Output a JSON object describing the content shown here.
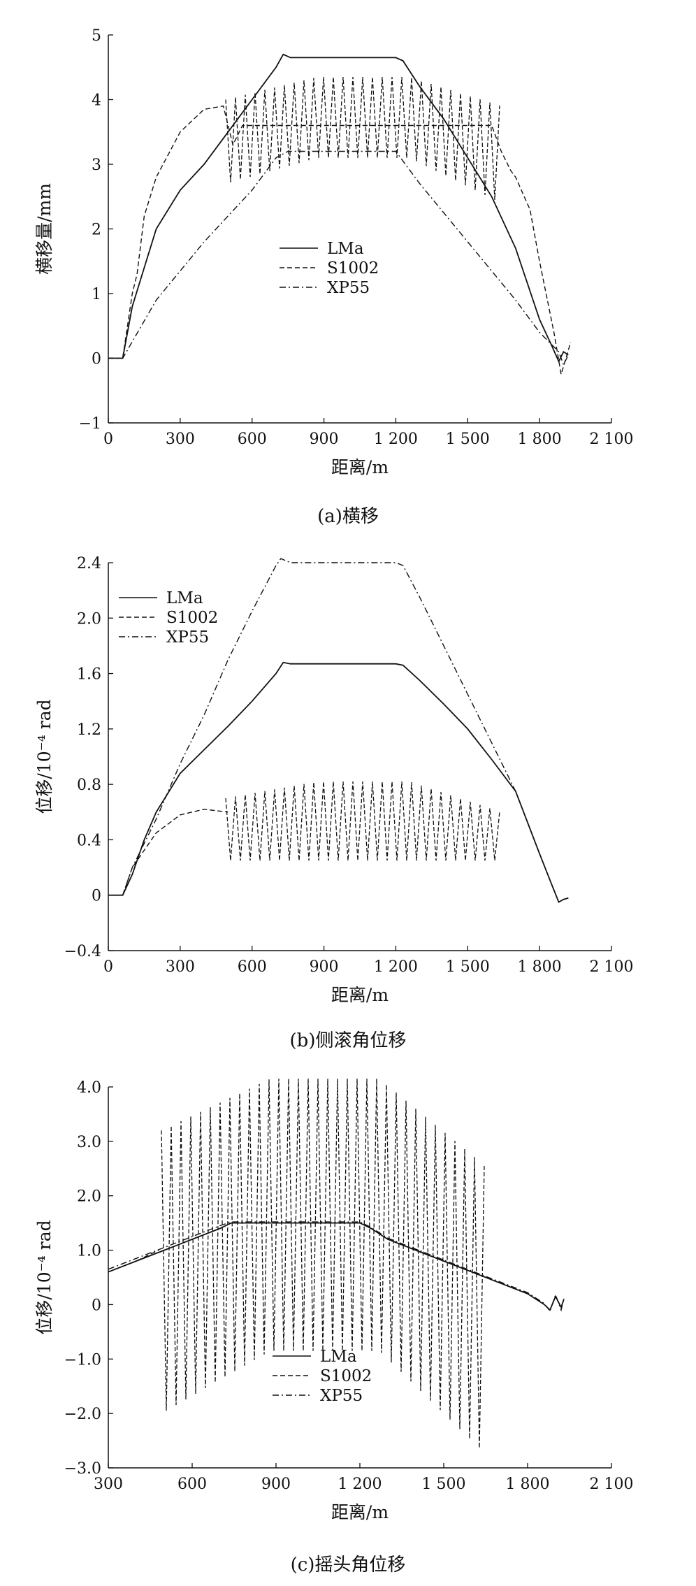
{
  "chart_data": [
    {
      "type": "line",
      "caption": "(a)横移",
      "xlabel": "距离/m",
      "ylabel": "横移量/mm",
      "xlim": [
        0,
        2100
      ],
      "ylim": [
        -1,
        5
      ],
      "xticks": [
        0,
        300,
        600,
        900,
        1200,
        1500,
        1800,
        2100
      ],
      "xtick_labels": [
        "0",
        "300",
        "600",
        "900",
        "1 200",
        "1 500",
        "1 800",
        "2 100"
      ],
      "yticks": [
        -1,
        0,
        1,
        2,
        3,
        4,
        5
      ],
      "ytick_labels": [
        "−1",
        "0",
        "1",
        "2",
        "3",
        "4",
        "5"
      ],
      "legend": [
        "LMa",
        "S1002",
        "XP55"
      ],
      "legend_position": "middle-left",
      "series": [
        {
          "name": "LMa",
          "style": "solid",
          "x": [
            0,
            60,
            100,
            150,
            200,
            300,
            400,
            500,
            600,
            700,
            730,
            760,
            1200,
            1230,
            1300,
            1400,
            1500,
            1600,
            1700,
            1800,
            1850,
            1880,
            1900,
            1920
          ],
          "y": [
            0,
            0,
            0.8,
            1.4,
            2.0,
            2.6,
            3.0,
            3.5,
            4.0,
            4.5,
            4.7,
            4.65,
            4.65,
            4.6,
            4.2,
            3.7,
            3.1,
            2.5,
            1.7,
            0.6,
            0.2,
            -0.05,
            0.1,
            0.05
          ]
        },
        {
          "name": "S1002",
          "style": "dashed",
          "x": [
            0,
            60,
            100,
            120,
            150,
            200,
            300,
            400,
            480,
            520,
            560,
            1600,
            1640,
            1680,
            1700,
            1760,
            1800,
            1860,
            1890,
            1910,
            1930
          ],
          "y": [
            0,
            0,
            1.0,
            1.3,
            2.2,
            2.8,
            3.5,
            3.85,
            3.9,
            3.3,
            3.6,
            3.6,
            3.2,
            2.9,
            2.8,
            2.3,
            1.5,
            0.4,
            -0.25,
            0.0,
            0.25
          ],
          "oscillation": {
            "x_start": 490,
            "x_end": 1640,
            "upper": [
              4.0,
              4.35,
              4.35,
              3.9
            ],
            "lower": [
              2.7,
              3.1,
              3.1,
              2.4
            ]
          }
        },
        {
          "name": "XP55",
          "style": "dash-dot",
          "x": [
            0,
            60,
            200,
            400,
            600,
            700,
            750,
            1200,
            1300,
            1500,
            1700,
            1800,
            1880,
            1900,
            1920
          ],
          "y": [
            0,
            0,
            0.9,
            1.8,
            2.6,
            3.1,
            3.2,
            3.2,
            2.7,
            1.8,
            0.9,
            0.4,
            0.1,
            -0.1,
            0.05
          ]
        }
      ]
    },
    {
      "type": "line",
      "caption": "(b)侧滚角位移",
      "xlabel": "距离/m",
      "ylabel": "位移/10⁻⁴ rad",
      "xlim": [
        0,
        2100
      ],
      "ylim": [
        -0.4,
        2.4
      ],
      "xticks": [
        0,
        300,
        600,
        900,
        1200,
        1500,
        1800,
        2100
      ],
      "xtick_labels": [
        "0",
        "300",
        "600",
        "900",
        "1 200",
        "1 500",
        "1 800",
        "2 100"
      ],
      "yticks": [
        -0.4,
        0,
        0.4,
        0.8,
        1.2,
        1.6,
        2.0,
        2.4
      ],
      "ytick_labels": [
        "−0.4",
        "0",
        "0.4",
        "0.8",
        "1.2",
        "1.6",
        "2.0",
        "2.4"
      ],
      "legend": [
        "LMa",
        "S1002",
        "XP55"
      ],
      "legend_position": "top-left",
      "series": [
        {
          "name": "LMa",
          "style": "solid",
          "x": [
            0,
            60,
            100,
            150,
            200,
            300,
            400,
            500,
            600,
            700,
            730,
            760,
            1200,
            1230,
            1300,
            1400,
            1500,
            1600,
            1700,
            1800,
            1850,
            1880,
            1900,
            1920
          ],
          "y": [
            0,
            0,
            0.15,
            0.4,
            0.6,
            0.88,
            1.05,
            1.22,
            1.4,
            1.6,
            1.68,
            1.67,
            1.67,
            1.66,
            1.55,
            1.38,
            1.2,
            0.98,
            0.75,
            0.3,
            0.08,
            -0.05,
            -0.03,
            -0.02
          ]
        },
        {
          "name": "S1002",
          "style": "dashed",
          "x": [
            0,
            60,
            100,
            200,
            300,
            400,
            500
          ],
          "y": [
            0,
            0,
            0.2,
            0.45,
            0.58,
            0.62,
            0.6
          ],
          "oscillation": {
            "x_start": 490,
            "x_end": 1640,
            "upper": [
              0.7,
              0.82,
              0.82,
              0.6
            ],
            "lower": [
              0.25,
              0.25,
              0.25,
              0.25
            ]
          }
        },
        {
          "name": "XP55",
          "style": "dash-dot",
          "x": [
            0,
            60,
            100,
            200,
            300,
            400,
            500,
            600,
            700,
            720,
            760,
            1200,
            1230,
            1300,
            1400,
            1500,
            1600,
            1700,
            1800,
            1850,
            1880,
            1900,
            1920
          ],
          "y": [
            0,
            0,
            0.2,
            0.55,
            0.95,
            1.3,
            1.7,
            2.05,
            2.38,
            2.43,
            2.4,
            2.4,
            2.38,
            2.15,
            1.8,
            1.45,
            1.1,
            0.75,
            0.3,
            0.08,
            -0.05,
            -0.03,
            -0.02
          ]
        }
      ]
    },
    {
      "type": "line",
      "caption": "(c)摇头角位移",
      "xlabel": "距离/m",
      "ylabel": "位移/10⁻⁴ rad",
      "xlim": [
        300,
        2100
      ],
      "ylim": [
        -3,
        4
      ],
      "xticks": [
        300,
        600,
        900,
        1200,
        1500,
        1800,
        2100
      ],
      "xtick_labels": [
        "300",
        "600",
        "900",
        "1 200",
        "1 500",
        "1 800",
        "2 100"
      ],
      "yticks": [
        -3,
        -2,
        -1,
        0,
        1,
        2,
        3,
        4
      ],
      "ytick_labels": [
        "−3.0",
        "−2.0",
        "−1.0",
        "0",
        "1.0",
        "2.0",
        "3.0",
        "4.0"
      ],
      "legend": [
        "LMa",
        "S1002",
        "XP55"
      ],
      "legend_position": "bottom-center",
      "series": [
        {
          "name": "LMa",
          "style": "solid",
          "x": [
            300,
            400,
            500,
            600,
            700,
            740,
            1200,
            1240,
            1300,
            1400,
            1500,
            1600,
            1700,
            1800,
            1860,
            1880,
            1900,
            1920,
            1930
          ],
          "y": [
            0.6,
            0.8,
            1.0,
            1.2,
            1.4,
            1.5,
            1.5,
            1.4,
            1.2,
            1.0,
            0.8,
            0.6,
            0.4,
            0.2,
            0.0,
            -0.1,
            0.15,
            -0.05,
            0.1
          ]
        },
        {
          "name": "S1002",
          "style": "dashed",
          "x": [
            300,
            400,
            480
          ],
          "y": [
            0.6,
            0.8,
            1.0
          ],
          "oscillation": {
            "x_start": 490,
            "x_end": 1660,
            "upper": [
              3.2,
              4.15,
              4.15,
              2.5
            ],
            "lower": [
              -2.0,
              -0.85,
              -0.85,
              -2.8
            ]
          }
        },
        {
          "name": "XP55",
          "style": "dash-dot",
          "x": [
            300,
            400,
            500,
            600,
            700,
            740,
            1200,
            1240,
            1300,
            1400,
            1500,
            1600,
            1700,
            1800,
            1860,
            1880,
            1900,
            1920,
            1930
          ],
          "y": [
            0.65,
            0.85,
            1.05,
            1.25,
            1.45,
            1.52,
            1.52,
            1.42,
            1.22,
            1.02,
            0.82,
            0.62,
            0.42,
            0.22,
            0.02,
            -0.12,
            0.18,
            -0.1,
            0.12
          ]
        }
      ]
    }
  ]
}
